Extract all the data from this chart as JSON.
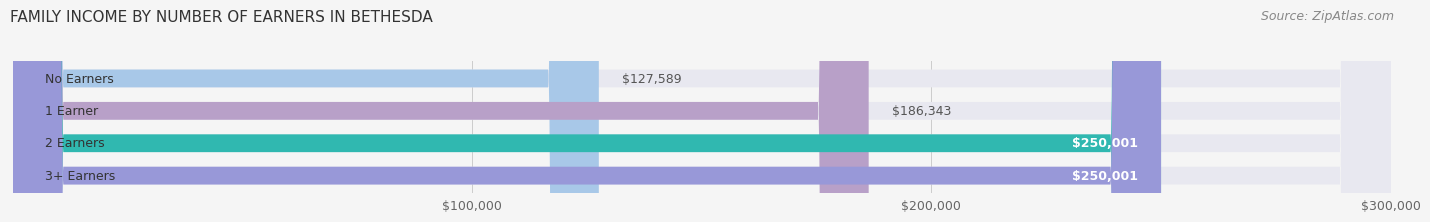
{
  "title": "FAMILY INCOME BY NUMBER OF EARNERS IN BETHESDA",
  "source": "Source: ZipAtlas.com",
  "categories": [
    "No Earners",
    "1 Earner",
    "2 Earners",
    "3+ Earners"
  ],
  "values": [
    127589,
    186343,
    250001,
    250001
  ],
  "bar_colors": [
    "#a8c8e8",
    "#b8a0c8",
    "#30b8b0",
    "#9898d8"
  ],
  "bar_bg_color": "#e8e8f0",
  "value_labels": [
    "$127,589",
    "$186,343",
    "$250,001",
    "$250,001"
  ],
  "label_inside": [
    false,
    false,
    true,
    true
  ],
  "xlim": [
    0,
    300000
  ],
  "xticks": [
    100000,
    200000,
    300000
  ],
  "xticklabels": [
    "$100,000",
    "$200,000",
    "$300,000"
  ],
  "background_color": "#f5f5f5",
  "title_fontsize": 11,
  "source_fontsize": 9,
  "tick_fontsize": 9,
  "label_fontsize": 9,
  "cat_fontsize": 9
}
